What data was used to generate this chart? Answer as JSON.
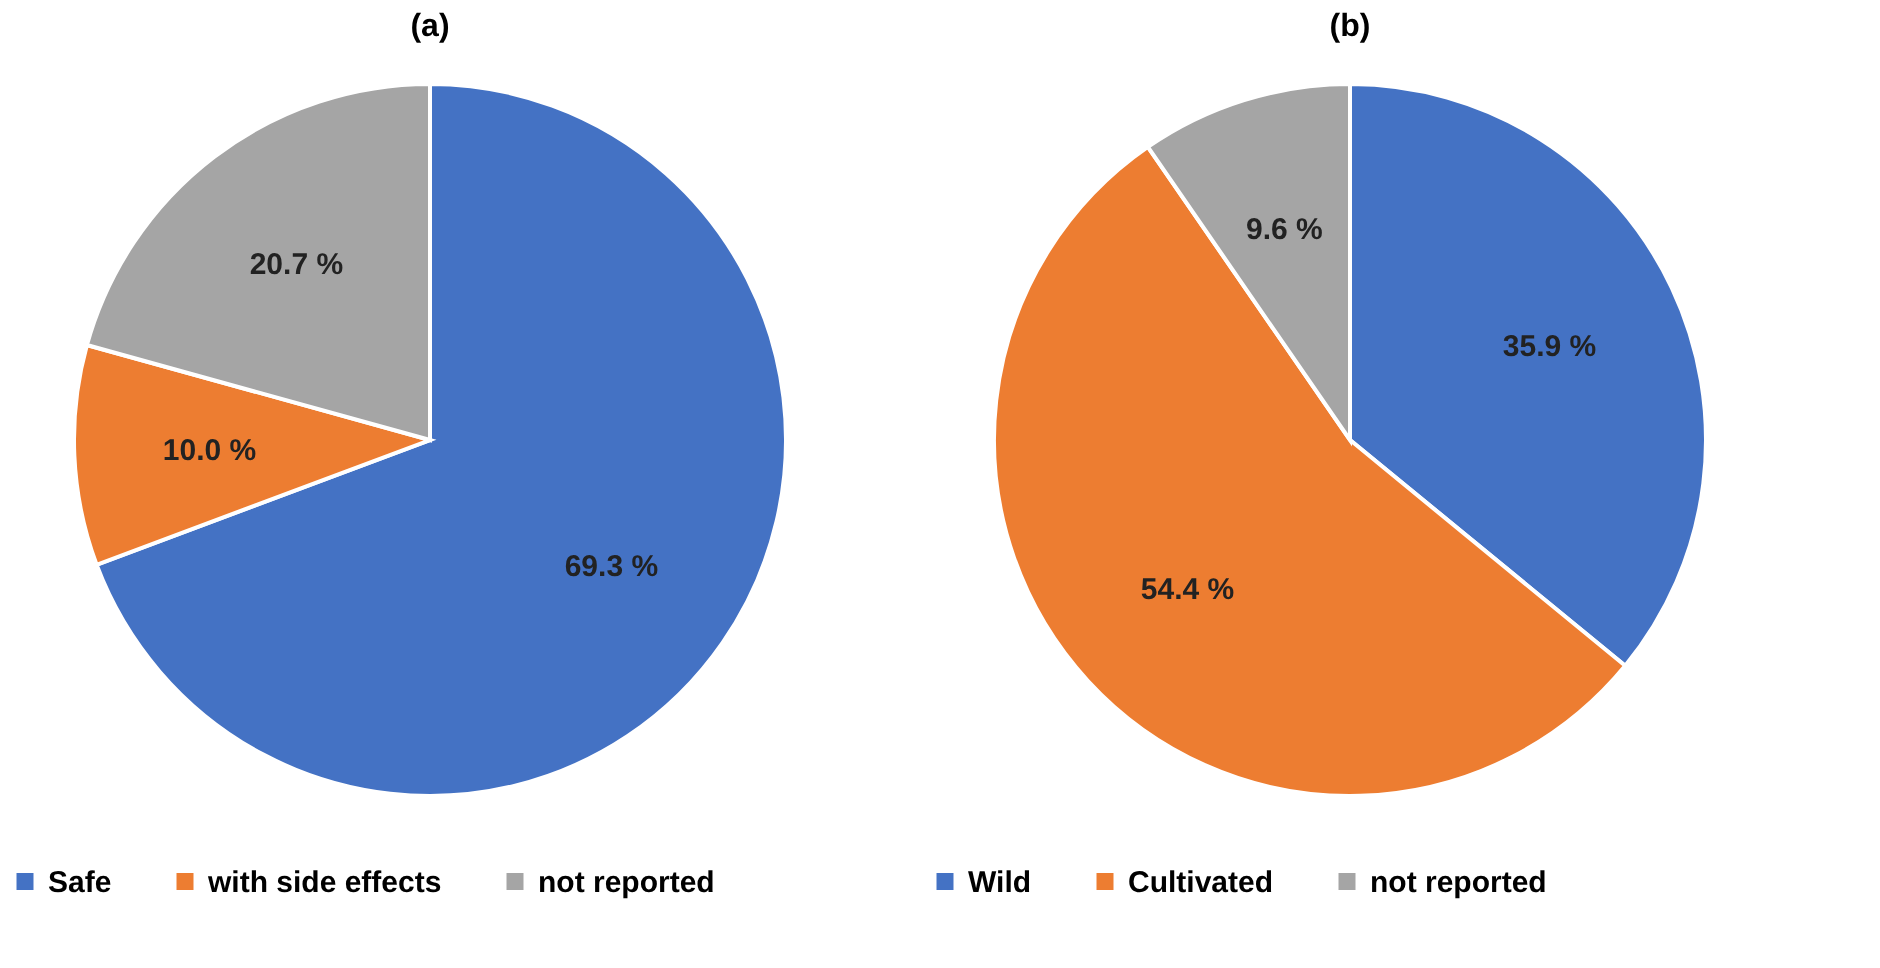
{
  "chart_data": [
    {
      "type": "pie",
      "title": "(a)",
      "categories": [
        "Safe",
        "with side effects",
        "not reported"
      ],
      "values": [
        69.3,
        10.0,
        20.7
      ],
      "colors": [
        "#4472c4",
        "#ed7d31",
        "#a5a5a5"
      ],
      "value_labels": [
        "69.3 %",
        "10.0 %",
        "20.7 %"
      ],
      "legend": "bottom"
    },
    {
      "type": "pie",
      "title": "(b)",
      "categories": [
        "Wild",
        "Cultivated",
        "not reported"
      ],
      "values": [
        35.9,
        54.4,
        9.6
      ],
      "colors": [
        "#4472c4",
        "#ed7d31",
        "#a5a5a5"
      ],
      "value_labels": [
        "35.9 %",
        "54.4 %",
        "9.6 %"
      ],
      "legend": "bottom"
    }
  ]
}
